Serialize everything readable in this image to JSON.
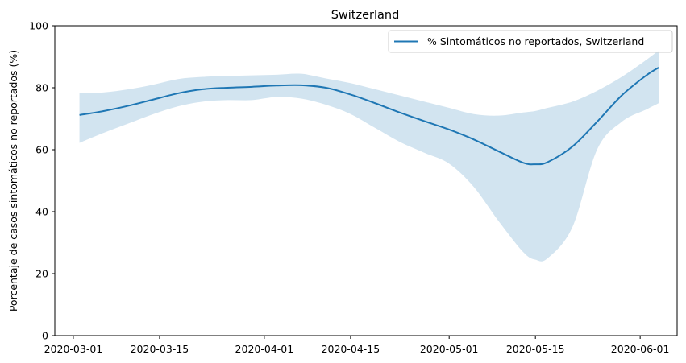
{
  "chart_data": {
    "type": "line",
    "title": "Switzerland",
    "xlabel": "",
    "ylabel": "Porcentaje de casos sintomáticos no reportados (%)",
    "x_axis": {
      "type": "date",
      "range": [
        "2020-02-27",
        "2020-06-07"
      ],
      "ticks": [
        "2020-03-01",
        "2020-03-15",
        "2020-04-01",
        "2020-04-15",
        "2020-05-01",
        "2020-05-15",
        "2020-06-01"
      ]
    },
    "y_axis": {
      "range": [
        0,
        100
      ],
      "ticks": [
        0,
        20,
        40,
        60,
        80,
        100
      ]
    },
    "grid": false,
    "legend": {
      "placement": "top-right",
      "entries": [
        "% Sintomáticos no reportados, Switzerland"
      ]
    },
    "colors": {
      "line": "#1f77b4",
      "band": "#1f77b4",
      "band_opacity": 0.2
    },
    "series": [
      {
        "name": "% Sintomáticos no reportados, Switzerland",
        "x": [
          "2020-03-02",
          "2020-03-06",
          "2020-03-10",
          "2020-03-14",
          "2020-03-18",
          "2020-03-22",
          "2020-03-26",
          "2020-03-30",
          "2020-04-03",
          "2020-04-07",
          "2020-04-11",
          "2020-04-15",
          "2020-04-19",
          "2020-04-23",
          "2020-04-27",
          "2020-05-01",
          "2020-05-05",
          "2020-05-09",
          "2020-05-13",
          "2020-05-15",
          "2020-05-17",
          "2020-05-21",
          "2020-05-25",
          "2020-05-29",
          "2020-06-02",
          "2020-06-04"
        ],
        "y": [
          71.2,
          72.5,
          74.2,
          76.2,
          78.2,
          79.5,
          80.0,
          80.3,
          80.7,
          80.8,
          80.0,
          77.8,
          75.0,
          72.0,
          69.2,
          66.5,
          63.3,
          59.5,
          55.8,
          55.3,
          56.0,
          61.0,
          69.0,
          77.5,
          84.0,
          86.5
        ],
        "lower": [
          62.2,
          65.5,
          68.5,
          71.5,
          74.0,
          75.5,
          76.0,
          76.0,
          77.0,
          76.5,
          74.5,
          71.5,
          67.0,
          62.5,
          59.0,
          55.5,
          48.0,
          37.0,
          27.0,
          24.5,
          25.0,
          35.0,
          60.0,
          69.0,
          73.0,
          75.0
        ],
        "upper": [
          78.2,
          78.5,
          79.5,
          81.0,
          82.8,
          83.5,
          83.8,
          84.0,
          84.2,
          84.5,
          83.0,
          81.5,
          79.5,
          77.5,
          75.5,
          73.5,
          71.5,
          71.0,
          72.0,
          72.5,
          73.5,
          75.5,
          79.0,
          83.5,
          89.0,
          92.0
        ]
      }
    ]
  }
}
